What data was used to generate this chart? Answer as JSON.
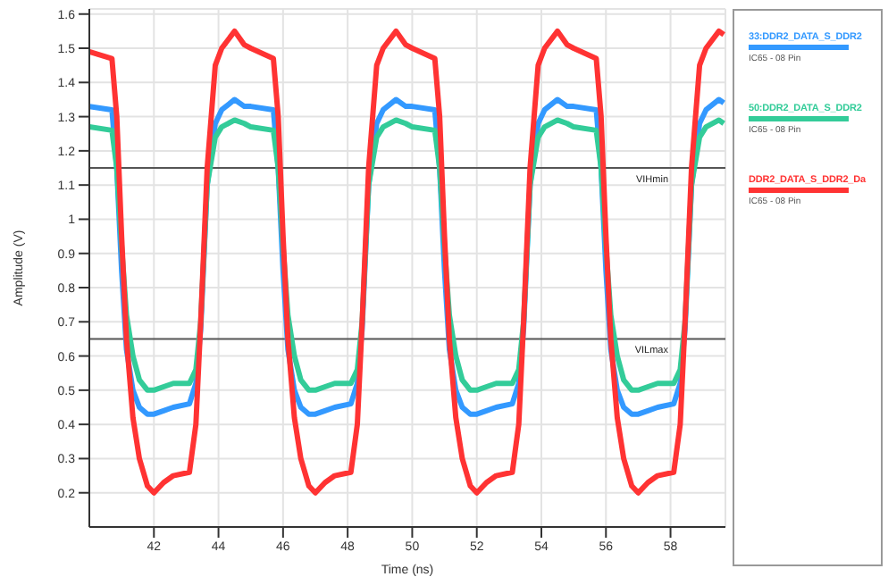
{
  "chart_data": {
    "type": "line",
    "xlabel": "Time (ns)",
    "ylabel": "Amplitude (V)",
    "x": [
      40,
      40.7,
      40.85,
      41,
      41.15,
      41.35,
      41.55,
      41.8,
      42,
      42.3,
      42.6,
      43.1,
      43.3,
      43.45,
      43.65,
      43.9,
      44.1,
      44.5,
      44.8,
      45,
      45.7,
      45.85,
      46,
      46.15,
      46.35,
      46.55,
      46.8,
      47,
      47.3,
      47.6,
      48.1,
      48.3,
      48.45,
      48.65,
      48.9,
      49.1,
      49.5,
      49.8,
      50,
      50.7,
      50.85,
      51,
      51.15,
      51.35,
      51.55,
      51.8,
      52,
      52.3,
      52.6,
      53.1,
      53.3,
      53.45,
      53.65,
      53.9,
      54.1,
      54.5,
      54.8,
      55,
      55.7,
      55.85,
      56,
      56.15,
      56.35,
      56.55,
      56.8,
      57,
      57.3,
      57.6,
      58.1,
      58.3,
      58.45,
      58.65,
      58.9,
      59.1,
      59.5,
      59.65
    ],
    "series": [
      {
        "name": "33:DDR2_DATA_S_DDR2",
        "color": "#3399ff",
        "values": [
          1.33,
          1.32,
          1.15,
          0.85,
          0.62,
          0.5,
          0.45,
          0.43,
          0.43,
          0.44,
          0.45,
          0.46,
          0.52,
          0.68,
          1.1,
          1.28,
          1.32,
          1.35,
          1.33,
          1.33,
          1.32,
          1.15,
          0.85,
          0.62,
          0.5,
          0.45,
          0.43,
          0.43,
          0.44,
          0.45,
          0.46,
          0.52,
          0.68,
          1.1,
          1.28,
          1.32,
          1.35,
          1.33,
          1.33,
          1.32,
          1.15,
          0.85,
          0.62,
          0.5,
          0.45,
          0.43,
          0.43,
          0.44,
          0.45,
          0.46,
          0.52,
          0.68,
          1.1,
          1.28,
          1.32,
          1.35,
          1.33,
          1.33,
          1.32,
          1.15,
          0.85,
          0.62,
          0.5,
          0.45,
          0.43,
          0.43,
          0.44,
          0.45,
          0.46,
          0.52,
          0.68,
          1.1,
          1.28,
          1.32,
          1.35,
          1.34
        ]
      },
      {
        "name": "50:DDR2_DATA_S_DDR2",
        "color": "#33cc99",
        "values": [
          1.27,
          1.26,
          1.15,
          0.92,
          0.72,
          0.6,
          0.53,
          0.5,
          0.5,
          0.51,
          0.52,
          0.52,
          0.56,
          0.7,
          1.1,
          1.24,
          1.27,
          1.29,
          1.28,
          1.27,
          1.26,
          1.15,
          0.92,
          0.72,
          0.6,
          0.53,
          0.5,
          0.5,
          0.51,
          0.52,
          0.52,
          0.56,
          0.7,
          1.1,
          1.24,
          1.27,
          1.29,
          1.28,
          1.27,
          1.26,
          1.15,
          0.92,
          0.72,
          0.6,
          0.53,
          0.5,
          0.5,
          0.51,
          0.52,
          0.52,
          0.56,
          0.7,
          1.1,
          1.24,
          1.27,
          1.29,
          1.28,
          1.27,
          1.26,
          1.15,
          0.92,
          0.72,
          0.6,
          0.53,
          0.5,
          0.5,
          0.51,
          0.52,
          0.52,
          0.56,
          0.7,
          1.1,
          1.24,
          1.27,
          1.29,
          1.28
        ]
      },
      {
        "name": "DDR2_DATA_S_DDR2_Da",
        "color": "#ff3333",
        "values": [
          1.49,
          1.47,
          1.3,
          0.95,
          0.65,
          0.42,
          0.3,
          0.22,
          0.2,
          0.23,
          0.25,
          0.26,
          0.4,
          0.7,
          1.15,
          1.45,
          1.5,
          1.55,
          1.51,
          1.5,
          1.47,
          1.3,
          0.95,
          0.65,
          0.42,
          0.3,
          0.22,
          0.2,
          0.23,
          0.25,
          0.26,
          0.4,
          0.7,
          1.15,
          1.45,
          1.5,
          1.55,
          1.51,
          1.5,
          1.47,
          1.3,
          0.95,
          0.65,
          0.42,
          0.3,
          0.22,
          0.2,
          0.23,
          0.25,
          0.26,
          0.4,
          0.7,
          1.15,
          1.45,
          1.5,
          1.55,
          1.51,
          1.5,
          1.47,
          1.3,
          0.95,
          0.65,
          0.42,
          0.3,
          0.22,
          0.2,
          0.23,
          0.25,
          0.26,
          0.4,
          0.7,
          1.15,
          1.45,
          1.5,
          1.55,
          1.54
        ]
      }
    ],
    "xlim": [
      40,
      59.7
    ],
    "xticks": [
      42,
      44,
      46,
      48,
      50,
      52,
      54,
      56,
      58
    ],
    "ylim": [
      0.1,
      1.615
    ],
    "yticks": [
      0.2,
      0.3,
      0.4,
      0.5,
      0.6,
      0.7,
      0.8,
      0.9,
      1,
      1.1,
      1.2,
      1.3,
      1.4,
      1.5,
      1.6
    ],
    "ref_lines": [
      {
        "axis": "y",
        "value": 1.15,
        "label": "VIHmin",
        "color": "#555555"
      },
      {
        "axis": "y",
        "value": 0.65,
        "label": "VILmax",
        "color": "#555555"
      }
    ],
    "annotations": [
      "IC65 - 08 Pin",
      "IC65 - 08 Pin",
      "IC65 - 08 Pin"
    ],
    "grid": true,
    "legend": "right",
    "marker": "none",
    "line_style": "solid"
  }
}
